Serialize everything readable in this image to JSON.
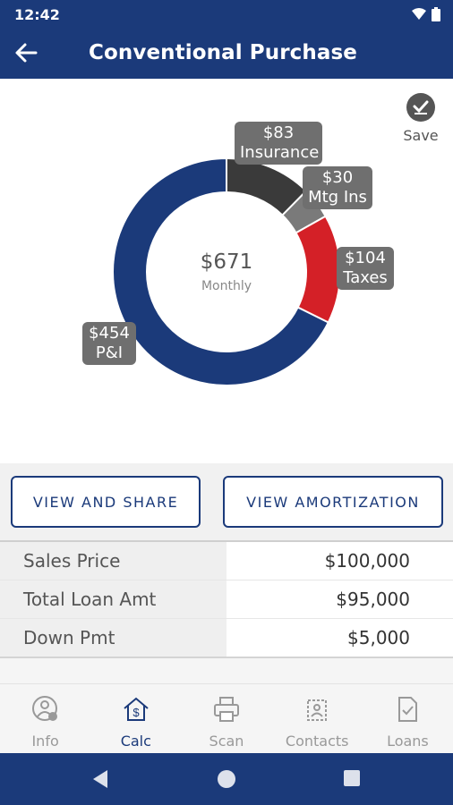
{
  "status": {
    "time": "12:42"
  },
  "app_bar": {
    "title": "Conventional Purchase"
  },
  "save": {
    "label": "Save"
  },
  "chart_data": {
    "type": "pie",
    "title": "",
    "center_value": "$671",
    "center_label": "Monthly",
    "slices": [
      {
        "label": "P&I",
        "value": 454,
        "display": "$454",
        "color": "#1b3a7a"
      },
      {
        "label": "Taxes",
        "value": 104,
        "display": "$104",
        "color": "#d42027"
      },
      {
        "label": "Mtg Ins",
        "value": 30,
        "display": "$30",
        "color": "#7a7a7a"
      },
      {
        "label": "Insurance",
        "value": 83,
        "display": "$83",
        "color": "#3a3a3a"
      }
    ]
  },
  "buttons": {
    "view_share": "VIEW AND SHARE",
    "view_amortization": "VIEW AMORTIZATION"
  },
  "summary": [
    {
      "label": "Sales Price",
      "value": "$100,000"
    },
    {
      "label": "Total Loan Amt",
      "value": "$95,000"
    },
    {
      "label": "Down Pmt",
      "value": "$5,000"
    }
  ],
  "nav": [
    {
      "label": "Info",
      "icon": "info-person-icon"
    },
    {
      "label": "Calc",
      "icon": "house-dollar-icon",
      "active": true
    },
    {
      "label": "Scan",
      "icon": "printer-icon"
    },
    {
      "label": "Contacts",
      "icon": "contacts-icon"
    },
    {
      "label": "Loans",
      "icon": "document-check-icon"
    }
  ],
  "colors": {
    "primary": "#1b3a7a",
    "accent_red": "#d42027",
    "tag_gray": "#6f6f6f"
  }
}
